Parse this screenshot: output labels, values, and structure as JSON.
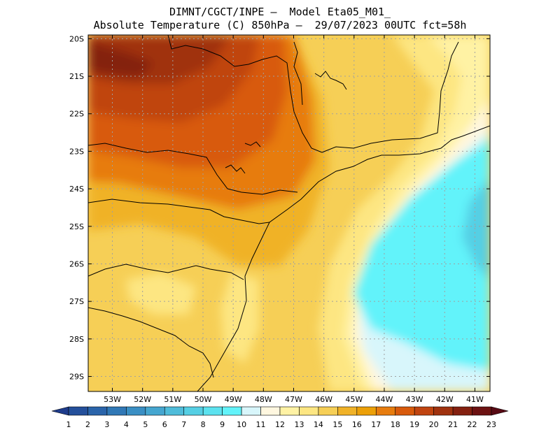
{
  "header": {
    "line1": "DIMNT/CGCT/INPE –  Model Eta05_M01_",
    "line2": "Absolute Temperature (C) 850hPa –  29/07/2023 00UTC fct=58h"
  },
  "map": {
    "lat_labels": [
      "20S",
      "21S",
      "22S",
      "23S",
      "24S",
      "25S",
      "26S",
      "27S",
      "28S",
      "29S"
    ],
    "lon_labels": [
      "53W",
      "52W",
      "51W",
      "50W",
      "49W",
      "48W",
      "47W",
      "46W",
      "45W",
      "44W",
      "43W",
      "42W",
      "41W"
    ],
    "lat_range": [
      -29.4,
      -19.9
    ],
    "lon_range": [
      -53.8,
      -40.5
    ],
    "grid": true
  },
  "colorbar": {
    "labels": [
      "1",
      "2",
      "3",
      "4",
      "5",
      "6",
      "7",
      "8",
      "9",
      "10",
      "11",
      "12",
      "13",
      "14",
      "15",
      "16",
      "17",
      "18",
      "19",
      "20",
      "21",
      "22",
      "23"
    ],
    "colors": [
      "#1e3c8c",
      "#24509b",
      "#2a64aa",
      "#3078b6",
      "#3a8fc4",
      "#45a6d0",
      "#4fbcda",
      "#55cfe4",
      "#5ce2ef",
      "#62f3fa",
      "#d8f6fb",
      "#fff7e0",
      "#fff2a4",
      "#fde682",
      "#f6cf56",
      "#f0b228",
      "#eca008",
      "#e77c0e",
      "#d85a0c",
      "#c04410",
      "#a0320f",
      "#842010",
      "#6c1212",
      "#580a14"
    ]
  }
}
